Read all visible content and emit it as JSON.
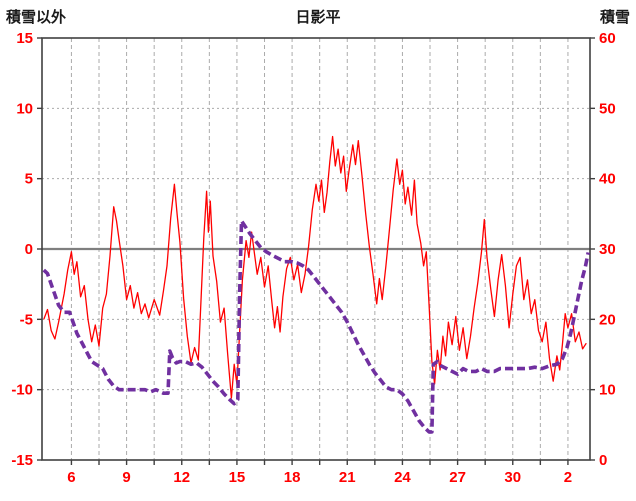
{
  "header": {
    "left_axis_title": "積雪以外",
    "title": "日影平",
    "right_axis_title": "積雪"
  },
  "colors": {
    "tick_label": "#ff0000",
    "grid": "#ababab",
    "zero_line": "#7f7f7f",
    "border": "#404040",
    "title_text": "#1a1a1a",
    "temp_line": "#ff0000",
    "snow_line": "#7030a0"
  },
  "chart_data": {
    "type": "line",
    "title": "日影平",
    "grid": true,
    "legend": "none",
    "left_axis": {
      "title": "積雪以外",
      "min": -15,
      "max": 15,
      "ticks": [
        15,
        10,
        5,
        0,
        -5,
        -10,
        -15
      ]
    },
    "right_axis": {
      "title": "積雪",
      "min": 0,
      "max": 60,
      "ticks": [
        60,
        50,
        40,
        30,
        20,
        10,
        0
      ]
    },
    "x_axis": {
      "min": 4.4,
      "max": 34.2,
      "tick_days": [
        6,
        9,
        12,
        15,
        18,
        21,
        24,
        27,
        30,
        33
      ],
      "tick_labels": [
        "6",
        "9",
        "12",
        "15",
        "18",
        "21",
        "24",
        "27",
        "30",
        "2"
      ],
      "gridline_start": 4.5,
      "gridline_step": 1.5
    },
    "series": [
      {
        "name": "積雪以外",
        "axis": "left",
        "color": "#ff0000",
        "width": 1.3,
        "dash": "",
        "points": [
          [
            4.5,
            -5.0
          ],
          [
            4.7,
            -4.3
          ],
          [
            4.9,
            -5.8
          ],
          [
            5.1,
            -6.4
          ],
          [
            5.3,
            -5.2
          ],
          [
            5.6,
            -3.2
          ],
          [
            5.8,
            -1.5
          ],
          [
            6.0,
            -0.2
          ],
          [
            6.15,
            -1.8
          ],
          [
            6.3,
            -0.9
          ],
          [
            6.5,
            -3.4
          ],
          [
            6.7,
            -2.6
          ],
          [
            6.9,
            -5.0
          ],
          [
            7.1,
            -6.6
          ],
          [
            7.3,
            -5.4
          ],
          [
            7.5,
            -6.9
          ],
          [
            7.7,
            -4.2
          ],
          [
            7.9,
            -3.2
          ],
          [
            8.1,
            -0.5
          ],
          [
            8.3,
            3.0
          ],
          [
            8.45,
            2.0
          ],
          [
            8.6,
            0.6
          ],
          [
            8.8,
            -1.2
          ],
          [
            9.0,
            -3.6
          ],
          [
            9.2,
            -2.6
          ],
          [
            9.4,
            -4.2
          ],
          [
            9.6,
            -3.1
          ],
          [
            9.8,
            -4.6
          ],
          [
            10.0,
            -3.9
          ],
          [
            10.2,
            -4.9
          ],
          [
            10.5,
            -3.6
          ],
          [
            10.8,
            -4.7
          ],
          [
            11.0,
            -3.0
          ],
          [
            11.2,
            -1.2
          ],
          [
            11.4,
            2.2
          ],
          [
            11.6,
            4.6
          ],
          [
            11.75,
            2.4
          ],
          [
            11.9,
            0.5
          ],
          [
            12.1,
            -3.5
          ],
          [
            12.3,
            -6.2
          ],
          [
            12.5,
            -8.1
          ],
          [
            12.7,
            -7.0
          ],
          [
            12.9,
            -7.9
          ],
          [
            13.05,
            -3.5
          ],
          [
            13.2,
            0.8
          ],
          [
            13.35,
            4.1
          ],
          [
            13.45,
            1.2
          ],
          [
            13.55,
            3.4
          ],
          [
            13.7,
            -0.5
          ],
          [
            13.9,
            -2.3
          ],
          [
            14.1,
            -5.2
          ],
          [
            14.3,
            -4.2
          ],
          [
            14.5,
            -7.5
          ],
          [
            14.7,
            -10.6
          ],
          [
            14.85,
            -8.2
          ],
          [
            15.0,
            -9.6
          ],
          [
            15.15,
            -5.8
          ],
          [
            15.3,
            -2.2
          ],
          [
            15.5,
            0.6
          ],
          [
            15.65,
            -0.6
          ],
          [
            15.8,
            1.2
          ],
          [
            15.95,
            -0.3
          ],
          [
            16.1,
            -1.8
          ],
          [
            16.3,
            -0.6
          ],
          [
            16.5,
            -2.7
          ],
          [
            16.7,
            -1.2
          ],
          [
            16.9,
            -3.8
          ],
          [
            17.05,
            -5.6
          ],
          [
            17.2,
            -4.1
          ],
          [
            17.35,
            -5.9
          ],
          [
            17.5,
            -3.4
          ],
          [
            17.7,
            -1.4
          ],
          [
            17.9,
            -0.6
          ],
          [
            18.1,
            -2.2
          ],
          [
            18.3,
            -1.1
          ],
          [
            18.5,
            -3.1
          ],
          [
            18.7,
            -1.8
          ],
          [
            18.9,
            0.2
          ],
          [
            19.1,
            2.8
          ],
          [
            19.3,
            4.6
          ],
          [
            19.45,
            3.4
          ],
          [
            19.6,
            4.9
          ],
          [
            19.75,
            2.6
          ],
          [
            19.9,
            4.0
          ],
          [
            20.05,
            6.2
          ],
          [
            20.2,
            8.0
          ],
          [
            20.35,
            5.9
          ],
          [
            20.5,
            7.1
          ],
          [
            20.65,
            5.4
          ],
          [
            20.8,
            6.6
          ],
          [
            20.95,
            4.1
          ],
          [
            21.1,
            5.6
          ],
          [
            21.3,
            7.4
          ],
          [
            21.45,
            6.0
          ],
          [
            21.6,
            7.7
          ],
          [
            21.8,
            5.2
          ],
          [
            22.0,
            2.5
          ],
          [
            22.2,
            0.2
          ],
          [
            22.4,
            -1.8
          ],
          [
            22.6,
            -3.9
          ],
          [
            22.75,
            -2.1
          ],
          [
            22.9,
            -3.6
          ],
          [
            23.1,
            -1.2
          ],
          [
            23.3,
            1.5
          ],
          [
            23.5,
            4.2
          ],
          [
            23.7,
            6.4
          ],
          [
            23.85,
            4.6
          ],
          [
            24.0,
            5.6
          ],
          [
            24.15,
            3.2
          ],
          [
            24.3,
            4.4
          ],
          [
            24.5,
            2.4
          ],
          [
            24.65,
            4.9
          ],
          [
            24.8,
            1.8
          ],
          [
            25.0,
            0.4
          ],
          [
            25.15,
            -1.2
          ],
          [
            25.3,
            -0.2
          ],
          [
            25.45,
            -4.0
          ],
          [
            25.6,
            -8.0
          ],
          [
            25.75,
            -9.6
          ],
          [
            25.9,
            -7.2
          ],
          [
            26.05,
            -8.6
          ],
          [
            26.2,
            -6.2
          ],
          [
            26.35,
            -7.6
          ],
          [
            26.5,
            -5.2
          ],
          [
            26.7,
            -6.8
          ],
          [
            26.9,
            -4.8
          ],
          [
            27.1,
            -7.2
          ],
          [
            27.3,
            -5.6
          ],
          [
            27.5,
            -7.8
          ],
          [
            27.7,
            -6.2
          ],
          [
            27.9,
            -4.2
          ],
          [
            28.1,
            -2.4
          ],
          [
            28.3,
            -0.2
          ],
          [
            28.45,
            2.1
          ],
          [
            28.6,
            -0.6
          ],
          [
            28.8,
            -2.8
          ],
          [
            29.0,
            -4.8
          ],
          [
            29.2,
            -2.2
          ],
          [
            29.4,
            -0.4
          ],
          [
            29.6,
            -2.6
          ],
          [
            29.8,
            -5.6
          ],
          [
            30.0,
            -3.2
          ],
          [
            30.2,
            -1.2
          ],
          [
            30.4,
            -0.6
          ],
          [
            30.6,
            -3.6
          ],
          [
            30.8,
            -2.2
          ],
          [
            31.0,
            -4.6
          ],
          [
            31.2,
            -3.6
          ],
          [
            31.4,
            -5.8
          ],
          [
            31.6,
            -6.6
          ],
          [
            31.8,
            -5.2
          ],
          [
            32.0,
            -7.8
          ],
          [
            32.2,
            -9.4
          ],
          [
            32.4,
            -7.6
          ],
          [
            32.55,
            -8.6
          ],
          [
            32.7,
            -6.8
          ],
          [
            32.85,
            -4.6
          ],
          [
            33.0,
            -5.6
          ],
          [
            33.2,
            -4.6
          ],
          [
            33.4,
            -6.6
          ],
          [
            33.6,
            -5.9
          ],
          [
            33.8,
            -7.1
          ],
          [
            34.0,
            -6.7
          ]
        ]
      },
      {
        "name": "積雪",
        "axis": "right",
        "color": "#7030a0",
        "width": 3.6,
        "dash": "8 4",
        "points": [
          [
            4.5,
            27
          ],
          [
            4.7,
            26.5
          ],
          [
            4.9,
            25
          ],
          [
            5.1,
            23.5
          ],
          [
            5.3,
            22
          ],
          [
            5.6,
            21
          ],
          [
            5.9,
            21
          ],
          [
            6.1,
            19.5
          ],
          [
            6.3,
            18
          ],
          [
            6.6,
            16.5
          ],
          [
            6.9,
            15
          ],
          [
            7.1,
            14
          ],
          [
            7.4,
            13.5
          ],
          [
            7.7,
            13
          ],
          [
            8.0,
            11.5
          ],
          [
            8.3,
            10.5
          ],
          [
            8.6,
            10
          ],
          [
            9.0,
            10
          ],
          [
            9.5,
            10
          ],
          [
            10.0,
            10
          ],
          [
            10.3,
            9.7
          ],
          [
            10.6,
            10
          ],
          [
            11.0,
            9.5
          ],
          [
            11.25,
            9.5
          ],
          [
            11.35,
            15.5
          ],
          [
            11.5,
            14.5
          ],
          [
            11.7,
            13.8
          ],
          [
            11.9,
            14
          ],
          [
            12.2,
            14
          ],
          [
            12.5,
            13.6
          ],
          [
            12.8,
            13.8
          ],
          [
            13.1,
            13.2
          ],
          [
            13.4,
            12.2
          ],
          [
            13.7,
            11.2
          ],
          [
            14.0,
            10.4
          ],
          [
            14.3,
            9.4
          ],
          [
            14.6,
            8.6
          ],
          [
            14.85,
            8
          ],
          [
            15.05,
            8.6
          ],
          [
            15.15,
            24
          ],
          [
            15.25,
            34
          ],
          [
            15.45,
            33.2
          ],
          [
            15.7,
            32.2
          ],
          [
            16.0,
            31.2
          ],
          [
            16.3,
            30.2
          ],
          [
            16.6,
            29.6
          ],
          [
            17.0,
            29
          ],
          [
            17.3,
            28.6
          ],
          [
            17.6,
            28.2
          ],
          [
            18.0,
            28.2
          ],
          [
            18.3,
            28
          ],
          [
            18.6,
            27.6
          ],
          [
            18.9,
            27
          ],
          [
            19.2,
            26
          ],
          [
            19.5,
            25
          ],
          [
            19.8,
            24
          ],
          [
            20.1,
            23
          ],
          [
            20.4,
            22
          ],
          [
            20.7,
            21
          ],
          [
            21.0,
            19.6
          ],
          [
            21.3,
            18
          ],
          [
            21.6,
            16.4
          ],
          [
            21.9,
            15
          ],
          [
            22.2,
            13.6
          ],
          [
            22.5,
            12.4
          ],
          [
            22.8,
            11.4
          ],
          [
            23.1,
            10.4
          ],
          [
            23.4,
            10
          ],
          [
            23.7,
            10
          ],
          [
            24.0,
            9.4
          ],
          [
            24.3,
            8.4
          ],
          [
            24.6,
            7
          ],
          [
            24.9,
            5.6
          ],
          [
            25.2,
            4.6
          ],
          [
            25.45,
            4
          ],
          [
            25.6,
            4
          ],
          [
            25.68,
            13.6
          ],
          [
            25.9,
            14
          ],
          [
            26.1,
            13.4
          ],
          [
            26.4,
            13
          ],
          [
            26.7,
            12.6
          ],
          [
            27.0,
            12.2
          ],
          [
            27.3,
            13
          ],
          [
            27.6,
            12.6
          ],
          [
            28.0,
            12.6
          ],
          [
            28.3,
            13
          ],
          [
            28.6,
            12.6
          ],
          [
            29.0,
            12.6
          ],
          [
            29.3,
            13
          ],
          [
            29.7,
            13
          ],
          [
            30.0,
            13
          ],
          [
            30.4,
            13
          ],
          [
            30.8,
            13
          ],
          [
            31.2,
            13.2
          ],
          [
            31.6,
            13
          ],
          [
            32.0,
            13.4
          ],
          [
            32.4,
            13.6
          ],
          [
            32.7,
            14.4
          ],
          [
            32.95,
            16
          ],
          [
            33.15,
            18
          ],
          [
            33.35,
            20.5
          ],
          [
            33.55,
            23
          ],
          [
            33.75,
            25.5
          ],
          [
            33.95,
            27.5
          ],
          [
            34.1,
            29.5
          ]
        ]
      }
    ]
  }
}
